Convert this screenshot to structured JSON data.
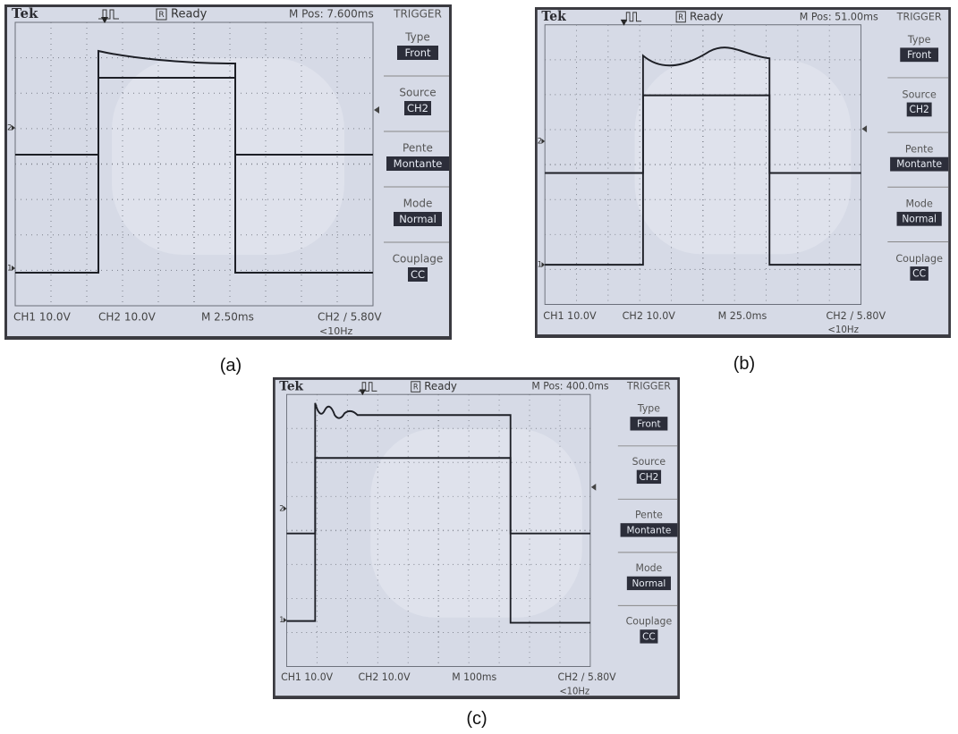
{
  "panels": [
    {
      "caption": "(a)",
      "header": {
        "brand": "Tek",
        "run_icon": "R",
        "status": "Ready",
        "position": "M Pos: 7.600ms"
      },
      "menu": {
        "title": "TRIGGER",
        "items": [
          {
            "label": "Type",
            "value": "Front"
          },
          {
            "label": "Source",
            "value": "CH2"
          },
          {
            "label": "Pente",
            "value": "Montante"
          },
          {
            "label": "Mode",
            "value": "Normal"
          },
          {
            "label": "Couplage",
            "value": "CC"
          }
        ]
      },
      "markers": [
        "2",
        "1"
      ],
      "footer": {
        "ch1": "CH1  10.0V",
        "ch2": "CH2  10.0V",
        "timebase": "M 2.50ms",
        "trigger": "CH2 ∕ 5.80V",
        "frequency": "<10Hz"
      }
    },
    {
      "caption": "(b)",
      "header": {
        "brand": "Tek",
        "run_icon": "R",
        "status": "Ready",
        "position": "M Pos: 51.00ms"
      },
      "menu": {
        "title": "TRIGGER",
        "items": [
          {
            "label": "Type",
            "value": "Front"
          },
          {
            "label": "Source",
            "value": "CH2"
          },
          {
            "label": "Pente",
            "value": "Montante"
          },
          {
            "label": "Mode",
            "value": "Normal"
          },
          {
            "label": "Couplage",
            "value": "CC"
          }
        ]
      },
      "markers": [
        "2",
        "1"
      ],
      "footer": {
        "ch1": "CH1  10.0V",
        "ch2": "CH2  10.0V",
        "timebase": "M 25.0ms",
        "trigger": "CH2 ∕ 5.80V",
        "frequency": "<10Hz"
      }
    },
    {
      "caption": "(c)",
      "header": {
        "brand": "Tek",
        "run_icon": "R",
        "status": "Ready",
        "position": "M Pos: 400.0ms"
      },
      "menu": {
        "title": "TRIGGER",
        "items": [
          {
            "label": "Type",
            "value": "Front"
          },
          {
            "label": "Source",
            "value": "CH2"
          },
          {
            "label": "Pente",
            "value": "Montante"
          },
          {
            "label": "Mode",
            "value": "Normal"
          },
          {
            "label": "Couplage",
            "value": "CC"
          }
        ]
      },
      "markers": [
        "2",
        "1"
      ],
      "footer": {
        "ch1": "CH1  10.0V",
        "ch2": "CH2  10.0V",
        "timebase": "M 100ms",
        "trigger": "CH2 ∕ 5.80V",
        "frequency": "<10Hz"
      }
    }
  ]
}
